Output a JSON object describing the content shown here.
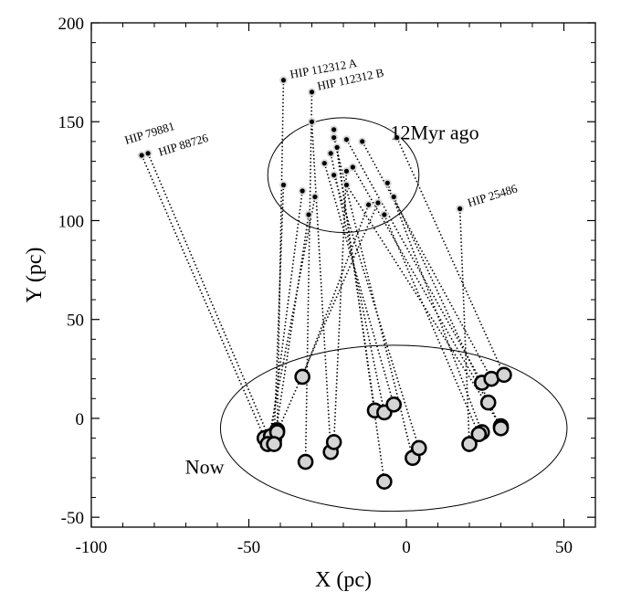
{
  "chart_data": {
    "type": "scatter",
    "xlabel": "X (pc)",
    "ylabel": "Y (pc)",
    "xlim": [
      -100,
      60
    ],
    "ylim": [
      -55,
      200
    ],
    "xticks": [
      -100,
      -50,
      0,
      50
    ],
    "yticks": [
      -50,
      0,
      50,
      100,
      150,
      200
    ],
    "grid": false,
    "group_labels": {
      "past": "12Myr ago",
      "now": "Now"
    },
    "regions": {
      "past_ellipse": {
        "cx": -20,
        "cy": 123,
        "rx": 24,
        "ry": 29
      },
      "now_ellipse": {
        "cx": -4,
        "cy": -5,
        "rx": 55,
        "ry": 42
      }
    },
    "named_stars": [
      {
        "name": "HIP 79881"
      },
      {
        "name": "HIP 88726"
      },
      {
        "name": "HIP 112312 A"
      },
      {
        "name": "HIP 112312 B"
      },
      {
        "name": "HIP 25486"
      }
    ],
    "trajectories": [
      {
        "past": [
          -84,
          133
        ],
        "now": [
          -45,
          -10
        ],
        "label_index": 0
      },
      {
        "past": [
          -82,
          134
        ],
        "now": [
          -43,
          -12
        ],
        "label_index": 1
      },
      {
        "past": [
          -39,
          171
        ],
        "now": [
          -41,
          -6
        ],
        "label_index": 2
      },
      {
        "past": [
          -30,
          165
        ],
        "now": [
          -32,
          -22
        ],
        "label_index": 3
      },
      {
        "past": [
          17,
          106
        ],
        "now": [
          20,
          -13
        ],
        "label_index": 4
      },
      {
        "past": [
          -30,
          150
        ],
        "now": [
          -24,
          -17
        ]
      },
      {
        "past": [
          -23,
          146
        ],
        "now": [
          -10,
          4
        ]
      },
      {
        "past": [
          -23,
          142
        ],
        "now": [
          2,
          -20
        ]
      },
      {
        "past": [
          -22,
          137
        ],
        "now": [
          -7,
          -32
        ]
      },
      {
        "past": [
          -19,
          141
        ],
        "now": [
          24,
          18
        ]
      },
      {
        "past": [
          -14,
          140
        ],
        "now": [
          27,
          20
        ]
      },
      {
        "past": [
          -3,
          142
        ],
        "now": [
          31,
          22
        ]
      },
      {
        "past": [
          -24,
          134
        ],
        "now": [
          -7,
          3
        ]
      },
      {
        "past": [
          -26,
          129
        ],
        "now": [
          -4,
          7
        ]
      },
      {
        "past": [
          -17,
          127
        ],
        "now": [
          26,
          8
        ]
      },
      {
        "past": [
          -19,
          125
        ],
        "now": [
          -23,
          -12
        ]
      },
      {
        "past": [
          -23,
          123
        ],
        "now": [
          4,
          -15
        ]
      },
      {
        "past": [
          -6,
          119
        ],
        "now": [
          24,
          -7
        ]
      },
      {
        "past": [
          -19,
          118
        ],
        "now": [
          30,
          -4
        ]
      },
      {
        "past": [
          -39,
          118
        ],
        "now": [
          -42,
          -11
        ]
      },
      {
        "past": [
          -33,
          115
        ],
        "now": [
          -43,
          -9
        ]
      },
      {
        "past": [
          -29,
          112
        ],
        "now": [
          -44,
          -13
        ]
      },
      {
        "past": [
          -12,
          108
        ],
        "now": [
          -33,
          21
        ]
      },
      {
        "past": [
          -9,
          109
        ],
        "now": [
          -41,
          -7
        ]
      },
      {
        "past": [
          -31,
          103
        ],
        "now": [
          -42,
          -13
        ]
      },
      {
        "past": [
          -7,
          103
        ],
        "now": [
          23,
          -8
        ]
      },
      {
        "past": [
          -4,
          112
        ],
        "now": [
          30,
          -5
        ]
      }
    ]
  }
}
